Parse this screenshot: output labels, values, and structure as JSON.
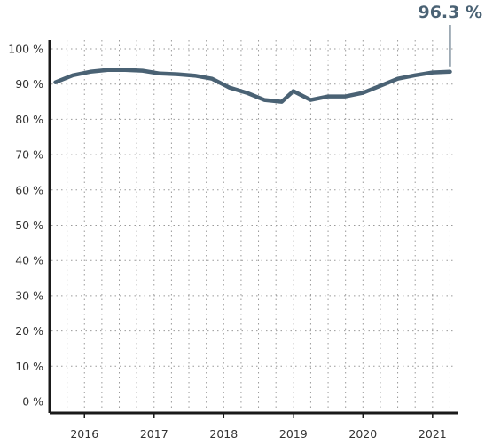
{
  "chart_data": {
    "type": "line",
    "title": "",
    "xlabel": "",
    "ylabel": "",
    "ylim": [
      0,
      100
    ],
    "xlim": [
      "2015-07",
      "2021-05"
    ],
    "yticks": [
      0,
      10,
      20,
      30,
      40,
      50,
      60,
      70,
      80,
      90,
      100
    ],
    "ytick_labels": [
      "0 %",
      "10 %",
      "20 %",
      "30 %",
      "40 %",
      "50 %",
      "60 %",
      "70 %",
      "80 %",
      "90 %",
      "100 %"
    ],
    "xticks": [
      "2016-01",
      "2017-01",
      "2018-01",
      "2019-01",
      "2020-01",
      "2021-01"
    ],
    "xtick_labels": [
      "2016",
      "2017",
      "2018",
      "2019",
      "2020",
      "2021"
    ],
    "grid": true,
    "series": [
      {
        "color": "#4a6274",
        "x": [
          "2015-08",
          "2015-11",
          "2016-02",
          "2016-05",
          "2016-08",
          "2016-11",
          "2017-02",
          "2017-05",
          "2017-08",
          "2017-11",
          "2018-02",
          "2018-05",
          "2018-08",
          "2018-11",
          "2019-01",
          "2019-04",
          "2019-07",
          "2019-10",
          "2020-01",
          "2020-04",
          "2020-07",
          "2020-10",
          "2021-01",
          "2021-04"
        ],
        "y": [
          90.5,
          92.5,
          93.5,
          94.0,
          94.0,
          93.8,
          93.0,
          92.8,
          92.4,
          91.5,
          89.0,
          87.5,
          85.5,
          85.0,
          88.0,
          85.5,
          86.5,
          86.5,
          87.5,
          89.5,
          91.5,
          92.5,
          93.3,
          93.5
        ]
      }
    ],
    "annotation": {
      "label": "96.3 %",
      "color": "#4a6274"
    }
  }
}
